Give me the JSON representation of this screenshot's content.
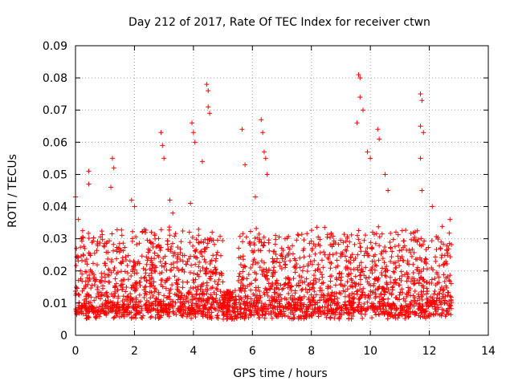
{
  "chart_data": {
    "type": "scatter",
    "title": "Day 212 of 2017, Rate Of TEC Index for receiver ctwn",
    "xlabel": "GPS time / hours",
    "ylabel": "ROTI / TECUs",
    "xlim": [
      0,
      14
    ],
    "ylim": [
      0,
      0.09
    ],
    "xticks": [
      "0",
      "2",
      "4",
      "6",
      "8",
      "10",
      "12",
      "14"
    ],
    "yticks": [
      "0",
      "0.01",
      "0.02",
      "0.03",
      "0.04",
      "0.05",
      "0.06",
      "0.07",
      "0.08",
      "0.09"
    ],
    "grid": true,
    "marker": "+",
    "series_color": "#ff0000",
    "data_extent_hours": [
      0,
      12.75
    ],
    "background_band": [
      0.005,
      0.03
    ],
    "notable_points": [
      {
        "x": 0.0,
        "y": 0.043
      },
      {
        "x": 0.1,
        "y": 0.036
      },
      {
        "x": 0.45,
        "y": 0.051
      },
      {
        "x": 0.45,
        "y": 0.047
      },
      {
        "x": 1.25,
        "y": 0.055
      },
      {
        "x": 1.3,
        "y": 0.052
      },
      {
        "x": 1.2,
        "y": 0.046
      },
      {
        "x": 1.9,
        "y": 0.042
      },
      {
        "x": 2.0,
        "y": 0.04
      },
      {
        "x": 2.9,
        "y": 0.063
      },
      {
        "x": 2.95,
        "y": 0.059
      },
      {
        "x": 3.0,
        "y": 0.055
      },
      {
        "x": 3.2,
        "y": 0.042
      },
      {
        "x": 3.3,
        "y": 0.038
      },
      {
        "x": 3.95,
        "y": 0.066
      },
      {
        "x": 4.0,
        "y": 0.063
      },
      {
        "x": 4.05,
        "y": 0.06
      },
      {
        "x": 3.9,
        "y": 0.041
      },
      {
        "x": 4.3,
        "y": 0.054
      },
      {
        "x": 4.45,
        "y": 0.078
      },
      {
        "x": 4.5,
        "y": 0.076
      },
      {
        "x": 4.5,
        "y": 0.071
      },
      {
        "x": 4.55,
        "y": 0.069
      },
      {
        "x": 5.65,
        "y": 0.064
      },
      {
        "x": 5.75,
        "y": 0.053
      },
      {
        "x": 6.1,
        "y": 0.043
      },
      {
        "x": 6.3,
        "y": 0.067
      },
      {
        "x": 6.35,
        "y": 0.063
      },
      {
        "x": 6.4,
        "y": 0.057
      },
      {
        "x": 6.45,
        "y": 0.055
      },
      {
        "x": 6.5,
        "y": 0.05
      },
      {
        "x": 9.6,
        "y": 0.081
      },
      {
        "x": 9.65,
        "y": 0.08
      },
      {
        "x": 9.65,
        "y": 0.074
      },
      {
        "x": 9.55,
        "y": 0.066
      },
      {
        "x": 9.75,
        "y": 0.07
      },
      {
        "x": 9.9,
        "y": 0.057
      },
      {
        "x": 10.0,
        "y": 0.055
      },
      {
        "x": 10.25,
        "y": 0.064
      },
      {
        "x": 10.3,
        "y": 0.061
      },
      {
        "x": 10.5,
        "y": 0.05
      },
      {
        "x": 10.6,
        "y": 0.045
      },
      {
        "x": 11.7,
        "y": 0.075
      },
      {
        "x": 11.75,
        "y": 0.073
      },
      {
        "x": 11.7,
        "y": 0.065
      },
      {
        "x": 11.8,
        "y": 0.063
      },
      {
        "x": 11.7,
        "y": 0.055
      },
      {
        "x": 11.75,
        "y": 0.045
      },
      {
        "x": 12.1,
        "y": 0.04
      },
      {
        "x": 12.7,
        "y": 0.036
      }
    ]
  }
}
